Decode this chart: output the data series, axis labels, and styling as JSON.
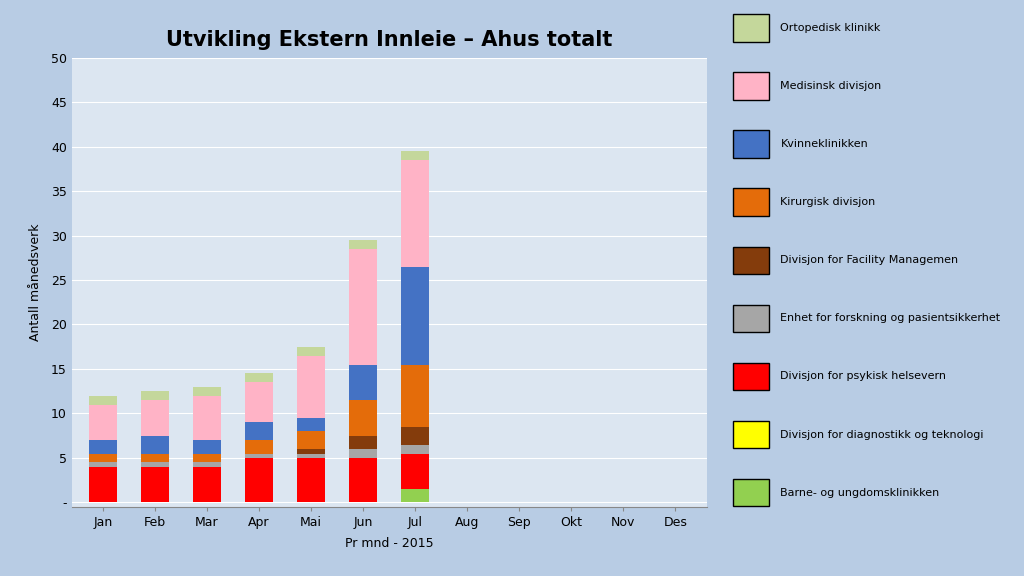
{
  "title": "Utvikling Ekstern Innleie – Ahus totalt",
  "xlabel": "Pr mnd - 2015",
  "ylabel": "Antall månedsverk",
  "months": [
    "Jan",
    "Feb",
    "Mar",
    "Apr",
    "Mai",
    "Jun",
    "Jul",
    "Aug",
    "Sep",
    "Okt",
    "Nov",
    "Des"
  ],
  "ylim": [
    -0.5,
    50
  ],
  "yticks": [
    0,
    5,
    10,
    15,
    20,
    25,
    30,
    35,
    40,
    45,
    50
  ],
  "ytick_labels": [
    "-",
    "5",
    "10",
    "15",
    "20",
    "25",
    "30",
    "35",
    "40",
    "45",
    "50"
  ],
  "series": [
    {
      "label": "Barne- og ungdomsklinikken",
      "color": "#92d050",
      "values": [
        0,
        0,
        0,
        0,
        0,
        0,
        1.5,
        0,
        0,
        0,
        0,
        0
      ]
    },
    {
      "label": "Divisjon for diagnostikk og teknologi",
      "color": "#ffff00",
      "values": [
        0,
        0,
        0,
        0,
        0,
        0,
        0,
        0,
        0,
        0,
        0,
        0
      ]
    },
    {
      "label": "Divisjon for psykisk helsevern",
      "color": "#ff0000",
      "values": [
        4,
        4,
        4,
        5,
        5,
        5,
        4,
        0,
        0,
        0,
        0,
        0
      ]
    },
    {
      "label": "Enhet for forskning og pasientsikkerhet",
      "color": "#a6a6a6",
      "values": [
        0.5,
        0.5,
        0.5,
        0.5,
        0.5,
        1,
        1,
        0,
        0,
        0,
        0,
        0
      ]
    },
    {
      "label": "Divisjon for Facility Managemen",
      "color": "#843c0c",
      "values": [
        0,
        0,
        0,
        0,
        0.5,
        1.5,
        2,
        0,
        0,
        0,
        0,
        0
      ]
    },
    {
      "label": "Kirurgisk divisjon",
      "color": "#e46c0a",
      "values": [
        1,
        1,
        1,
        1.5,
        2,
        4,
        7,
        0,
        0,
        0,
        0,
        0
      ]
    },
    {
      "label": "Kvinneklinikken",
      "color": "#4472c4",
      "values": [
        1.5,
        2,
        1.5,
        2,
        1.5,
        4,
        11,
        0,
        0,
        0,
        0,
        0
      ]
    },
    {
      "label": "Medisinsk divisjon",
      "color": "#ffb3c6",
      "values": [
        4,
        4,
        5,
        4.5,
        7,
        13,
        12,
        0,
        0,
        0,
        0,
        0
      ]
    },
    {
      "label": "Ortopedisk klinikk",
      "color": "#c4d79b",
      "values": [
        1,
        1,
        1,
        1,
        1,
        1,
        1,
        0,
        0,
        0,
        0,
        0
      ]
    }
  ],
  "fig_bg_color": "#b8cce4",
  "plot_area_color": "#dce6f1",
  "title_fontsize": 15,
  "axis_label_fontsize": 9,
  "tick_fontsize": 9,
  "legend_fontsize": 8
}
